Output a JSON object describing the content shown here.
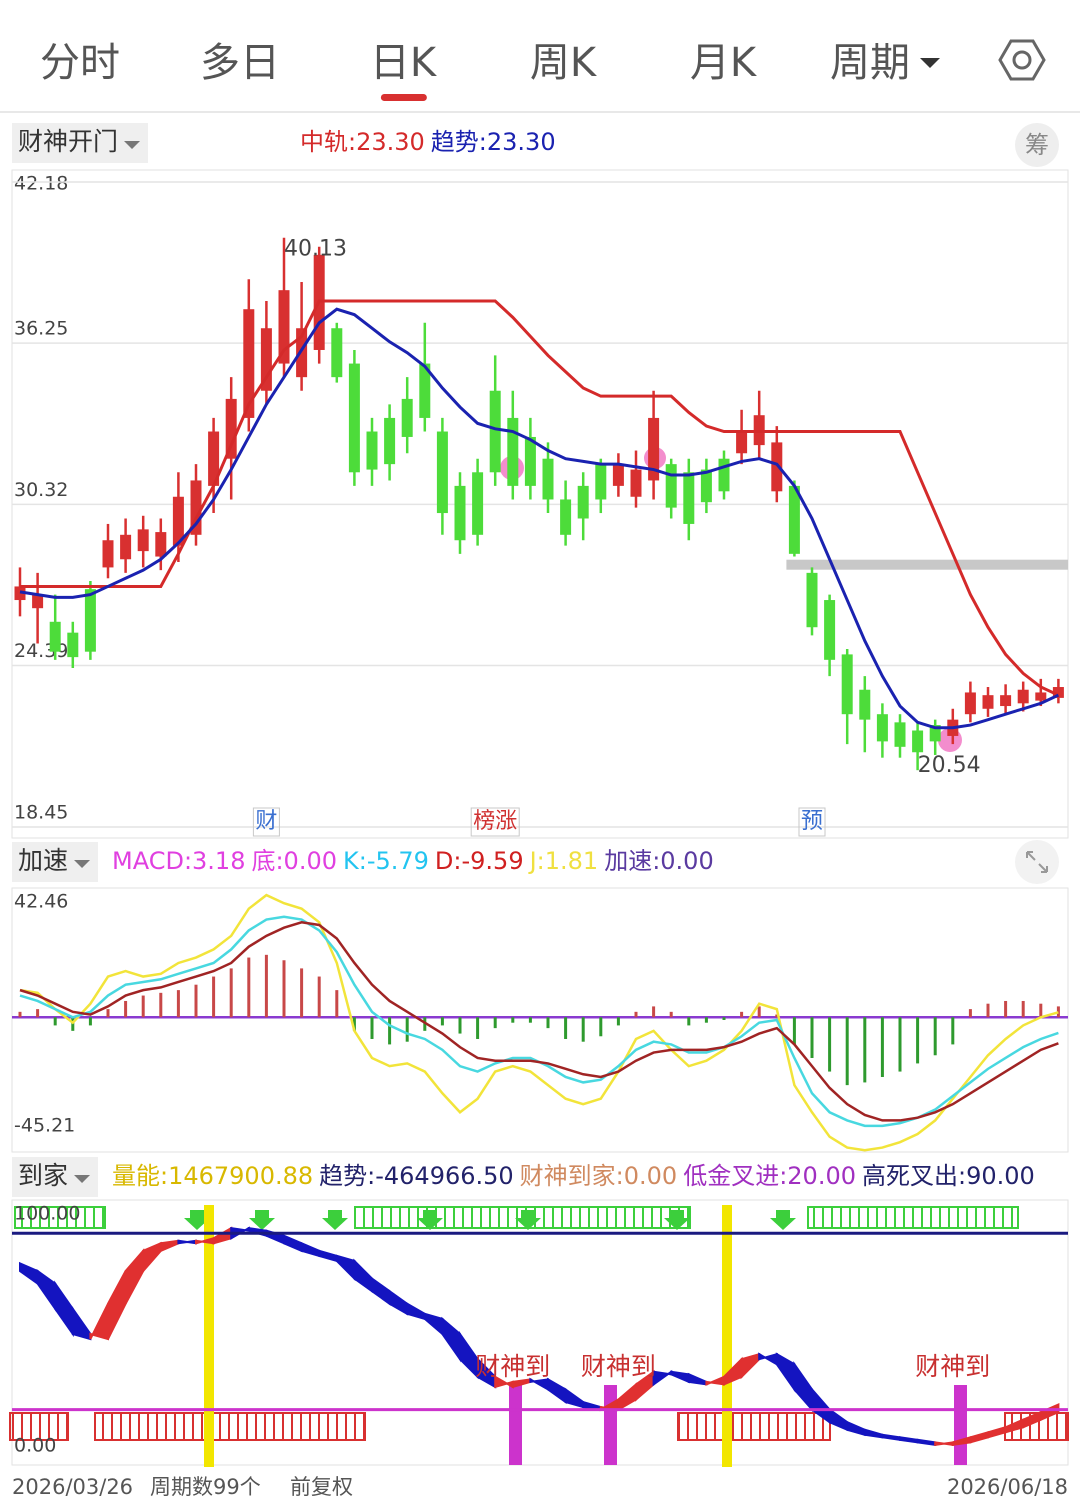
{
  "tabs": [
    "分时",
    "多日",
    "日K",
    "周K",
    "月K",
    "周期"
  ],
  "active_tab": 2,
  "chart_data": [
    {
      "type": "candlestick",
      "indicator": "财神开门",
      "button": "筹",
      "legend": [
        {
          "text": "中轨:23.30",
          "color": "#d42a2a"
        },
        {
          "text": "趋势:23.30",
          "color": "#1a22b0"
        }
      ],
      "ylim": [
        18.45,
        42.18
      ],
      "yticks": [
        42.18,
        36.25,
        30.32,
        24.39,
        18.45
      ],
      "grid": true,
      "up_color": "#d83030",
      "down_color": "#4ddc3a",
      "candles": [
        {
          "o": 26.8,
          "h": 28.0,
          "l": 26.2,
          "c": 27.3
        },
        {
          "o": 26.5,
          "h": 27.8,
          "l": 25.2,
          "c": 27.0
        },
        {
          "o": 26.0,
          "h": 27.0,
          "l": 24.6,
          "c": 24.9
        },
        {
          "o": 25.6,
          "h": 26.0,
          "l": 24.3,
          "c": 24.7
        },
        {
          "o": 27.2,
          "h": 27.5,
          "l": 24.6,
          "c": 24.9
        },
        {
          "o": 28.0,
          "h": 29.6,
          "l": 27.6,
          "c": 29.0
        },
        {
          "o": 28.3,
          "h": 29.8,
          "l": 27.8,
          "c": 29.2
        },
        {
          "o": 28.6,
          "h": 29.9,
          "l": 28.0,
          "c": 29.4
        },
        {
          "o": 28.4,
          "h": 29.8,
          "l": 27.9,
          "c": 29.3
        },
        {
          "o": 28.8,
          "h": 31.5,
          "l": 28.2,
          "c": 30.6
        },
        {
          "o": 29.2,
          "h": 31.8,
          "l": 28.8,
          "c": 31.2
        },
        {
          "o": 31.0,
          "h": 33.5,
          "l": 30.0,
          "c": 33.0
        },
        {
          "o": 32.0,
          "h": 35.0,
          "l": 30.5,
          "c": 34.2
        },
        {
          "o": 33.5,
          "h": 38.6,
          "l": 33.0,
          "c": 37.5
        },
        {
          "o": 34.5,
          "h": 37.8,
          "l": 34.0,
          "c": 36.8
        },
        {
          "o": 35.5,
          "h": 40.13,
          "l": 35.0,
          "c": 38.2
        },
        {
          "o": 35.0,
          "h": 38.5,
          "l": 34.5,
          "c": 36.8
        },
        {
          "o": 36.0,
          "h": 39.8,
          "l": 35.5,
          "c": 39.5
        },
        {
          "o": 36.8,
          "h": 37.0,
          "l": 34.8,
          "c": 35.0
        },
        {
          "o": 35.5,
          "h": 36.0,
          "l": 31.0,
          "c": 31.5
        },
        {
          "o": 33.0,
          "h": 33.5,
          "l": 31.0,
          "c": 31.6
        },
        {
          "o": 33.5,
          "h": 34.0,
          "l": 31.2,
          "c": 31.8
        },
        {
          "o": 34.2,
          "h": 35.0,
          "l": 32.2,
          "c": 32.8
        },
        {
          "o": 35.5,
          "h": 37.0,
          "l": 33.0,
          "c": 33.5
        },
        {
          "o": 33.0,
          "h": 33.5,
          "l": 29.2,
          "c": 30.0
        },
        {
          "o": 31.0,
          "h": 31.5,
          "l": 28.5,
          "c": 29.0
        },
        {
          "o": 31.5,
          "h": 32.0,
          "l": 28.8,
          "c": 29.2
        },
        {
          "o": 34.5,
          "h": 35.8,
          "l": 31.0,
          "c": 31.5
        },
        {
          "o": 33.5,
          "h": 34.5,
          "l": 30.5,
          "c": 31.0
        },
        {
          "o": 32.8,
          "h": 33.5,
          "l": 30.5,
          "c": 31.0
        },
        {
          "o": 32.0,
          "h": 32.6,
          "l": 30.0,
          "c": 30.5
        },
        {
          "o": 30.5,
          "h": 31.2,
          "l": 28.8,
          "c": 29.2
        },
        {
          "o": 31.0,
          "h": 31.5,
          "l": 29.0,
          "c": 29.8
        },
        {
          "o": 31.8,
          "h": 32.0,
          "l": 30.0,
          "c": 30.5
        },
        {
          "o": 31.0,
          "h": 32.2,
          "l": 30.6,
          "c": 31.8
        },
        {
          "o": 30.6,
          "h": 32.3,
          "l": 30.2,
          "c": 31.6
        },
        {
          "o": 31.2,
          "h": 34.5,
          "l": 30.5,
          "c": 33.5
        },
        {
          "o": 31.8,
          "h": 32.0,
          "l": 29.8,
          "c": 30.2
        },
        {
          "o": 31.5,
          "h": 32.0,
          "l": 29.0,
          "c": 29.6
        },
        {
          "o": 31.6,
          "h": 32.0,
          "l": 30.0,
          "c": 30.4
        },
        {
          "o": 32.0,
          "h": 32.3,
          "l": 30.5,
          "c": 30.8
        },
        {
          "o": 32.2,
          "h": 33.8,
          "l": 31.8,
          "c": 33.0
        },
        {
          "o": 32.5,
          "h": 34.5,
          "l": 32.0,
          "c": 33.6
        },
        {
          "o": 30.8,
          "h": 33.2,
          "l": 30.4,
          "c": 32.6
        },
        {
          "o": 31.0,
          "h": 31.2,
          "l": 28.4,
          "c": 28.5
        },
        {
          "o": 27.8,
          "h": 28.0,
          "l": 25.5,
          "c": 25.8
        },
        {
          "o": 26.8,
          "h": 27.0,
          "l": 24.0,
          "c": 24.6
        },
        {
          "o": 24.8,
          "h": 25.0,
          "l": 21.5,
          "c": 22.6
        },
        {
          "o": 23.5,
          "h": 24.0,
          "l": 21.2,
          "c": 22.4
        },
        {
          "o": 22.6,
          "h": 23.0,
          "l": 21.0,
          "c": 21.6
        },
        {
          "o": 22.3,
          "h": 22.6,
          "l": 21.0,
          "c": 21.4
        },
        {
          "o": 22.0,
          "h": 22.3,
          "l": 20.54,
          "c": 21.2
        },
        {
          "o": 22.2,
          "h": 22.4,
          "l": 21.1,
          "c": 21.6
        },
        {
          "o": 21.8,
          "h": 22.8,
          "l": 21.5,
          "c": 22.4
        },
        {
          "o": 22.6,
          "h": 23.8,
          "l": 22.3,
          "c": 23.4
        },
        {
          "o": 22.8,
          "h": 23.6,
          "l": 22.5,
          "c": 23.3
        },
        {
          "o": 22.9,
          "h": 23.7,
          "l": 22.6,
          "c": 23.3
        },
        {
          "o": 23.0,
          "h": 23.8,
          "l": 22.7,
          "c": 23.5
        },
        {
          "o": 23.1,
          "h": 23.9,
          "l": 22.9,
          "c": 23.4
        },
        {
          "o": 23.2,
          "h": 23.9,
          "l": 23.0,
          "c": 23.6
        }
      ],
      "series": [
        {
          "color": "#d42a2a",
          "values": [
            27.3,
            27.3,
            27.3,
            27.3,
            27.3,
            27.3,
            27.3,
            27.3,
            27.3,
            28.5,
            29.8,
            31,
            32.5,
            34,
            35,
            36,
            36.5,
            37.8,
            37.8,
            37.8,
            37.8,
            37.8,
            37.8,
            37.8,
            37.8,
            37.8,
            37.8,
            37.8,
            37.2,
            36.5,
            35.8,
            35.2,
            34.6,
            34.3,
            34.3,
            34.3,
            34.3,
            34.3,
            33.7,
            33.2,
            33,
            33,
            33,
            33,
            33,
            33,
            33,
            33,
            33,
            33,
            33,
            31.5,
            30,
            28.5,
            27,
            25.8,
            24.8,
            24.1,
            23.6,
            23.3
          ]
        },
        {
          "color": "#1a22b0",
          "values": [
            27.1,
            27,
            26.9,
            26.9,
            27,
            27.3,
            27.6,
            27.9,
            28.3,
            28.9,
            29.6,
            30.5,
            31.6,
            32.8,
            34,
            35,
            36,
            37,
            37.5,
            37.3,
            36.8,
            36.3,
            35.9,
            35.4,
            34.6,
            33.9,
            33.3,
            33.1,
            33,
            32.7,
            32.3,
            32,
            31.9,
            31.8,
            31.8,
            31.7,
            31.6,
            31.4,
            31.4,
            31.5,
            31.7,
            31.9,
            32,
            31.8,
            31,
            29.8,
            28.3,
            26.8,
            25.3,
            24,
            22.9,
            22.3,
            22.1,
            22.1,
            22.2,
            22.4,
            22.6,
            22.8,
            23,
            23.3
          ]
        }
      ],
      "level": 28.1,
      "level_from": 44,
      "level_color": "#c8c8c8",
      "annotations": [
        {
          "text": "财",
          "index": 14,
          "color": "#3a6fd0"
        },
        {
          "text": "榜涨",
          "index": 27,
          "color": "#d03030"
        },
        {
          "text": "预",
          "index": 45,
          "color": "#3a6fd0"
        }
      ]
    },
    {
      "type": "macd",
      "indicator": "加速",
      "legend": [
        {
          "text": "MACD:3.18",
          "color": "#e040e0"
        },
        {
          "text": "底:0.00",
          "color": "#e040e0"
        },
        {
          "text": "K:-5.79",
          "color": "#22c4f0"
        },
        {
          "text": "D:-9.59",
          "color": "#d02020"
        },
        {
          "text": "J:1.81",
          "color": "#f0e040"
        },
        {
          "text": "加速:0.00",
          "color": "#5a3aa0"
        }
      ],
      "ylim": [
        -45.21,
        42.46
      ],
      "yticks": [
        42.46,
        -45.21
      ],
      "grid": false,
      "zero_color": "#8a3ad0",
      "bars": {
        "up_color": "#c84848",
        "down_color": "#2e9a2e",
        "values": [
          2,
          3,
          -3,
          -5,
          -3,
          3,
          6,
          8,
          9,
          10,
          12,
          15,
          18,
          22,
          23,
          21,
          18,
          15,
          10,
          -5,
          -8,
          -10,
          -9,
          -5,
          -3,
          -6,
          -8,
          -4,
          -2,
          -2,
          -4,
          -8,
          -9,
          -7,
          -3,
          2,
          4,
          2,
          -3,
          -2,
          -1,
          2,
          4,
          1,
          -10,
          -15,
          -20,
          -25,
          -24,
          -22,
          -20,
          -17,
          -14,
          -10,
          3,
          5,
          6,
          6,
          5,
          4
        ]
      },
      "series": [
        {
          "color": "#f2e43a",
          "values": [
            10,
            9,
            3,
            -2,
            5,
            15,
            17,
            15,
            16,
            20,
            22,
            25,
            30,
            40,
            45,
            42,
            40,
            35,
            20,
            -5,
            -15,
            -18,
            -17,
            -20,
            -28,
            -35,
            -30,
            -20,
            -18,
            -20,
            -25,
            -30,
            -32,
            -30,
            -20,
            -8,
            -5,
            -12,
            -18,
            -16,
            -12,
            -5,
            5,
            3,
            -25,
            -35,
            -44,
            -48,
            -49,
            -48,
            -46,
            -43,
            -38,
            -30,
            -22,
            -14,
            -8,
            -3,
            0,
            1.81
          ]
        },
        {
          "color": "#48d8e0",
          "values": [
            8,
            6,
            3,
            0,
            2,
            8,
            12,
            13,
            14,
            16,
            18,
            20,
            25,
            32,
            36,
            37,
            36,
            32,
            24,
            12,
            2,
            -3,
            -6,
            -8,
            -12,
            -18,
            -20,
            -17,
            -15,
            -15,
            -18,
            -22,
            -24,
            -23,
            -18,
            -12,
            -9,
            -10,
            -13,
            -13,
            -11,
            -7,
            -2,
            -1,
            -15,
            -28,
            -35,
            -38,
            -40,
            -40,
            -39,
            -37,
            -34,
            -29,
            -24,
            -19,
            -15,
            -11,
            -8,
            -5.79
          ]
        },
        {
          "color": "#a02424",
          "values": [
            10,
            8,
            5,
            2,
            1,
            4,
            8,
            10,
            11,
            13,
            15,
            17,
            20,
            26,
            30,
            33,
            35,
            34,
            29,
            20,
            12,
            6,
            2,
            -2,
            -6,
            -11,
            -15,
            -16,
            -16,
            -16,
            -17,
            -19,
            -21,
            -22,
            -20,
            -16,
            -13,
            -12,
            -12,
            -12,
            -11,
            -9,
            -6,
            -4,
            -10,
            -18,
            -26,
            -32,
            -36,
            -38,
            -38,
            -37,
            -35,
            -32,
            -28,
            -24,
            -20,
            -16,
            -12,
            -9.59
          ]
        }
      ]
    },
    {
      "type": "band",
      "indicator": "到家",
      "legend": [
        {
          "text": "量能:1467900.88",
          "color": "#d8b800"
        },
        {
          "text": "趋势:-464966.50",
          "color": "#22226a"
        },
        {
          "text": "财神到家:0.00",
          "color": "#d08a60"
        },
        {
          "text": "低金叉进:20.00",
          "color": "#a030c0"
        },
        {
          "text": "高死叉出:90.00",
          "color": "#22226a"
        }
      ],
      "ylim": [
        0,
        100
      ],
      "yticks": [
        {
          "value": 100,
          "label": "100.00"
        },
        {
          "value": 0,
          "label": "0.00"
        }
      ],
      "grid": false,
      "fill_up": "#e03030",
      "fill_down": "#1414c0",
      "series": [
        {
          "color": "#1414c0",
          "values": [
            75,
            70,
            60,
            50,
            48,
            62,
            75,
            83,
            86,
            87,
            86,
            88,
            92,
            91,
            89,
            86,
            83,
            81,
            79,
            72,
            67,
            62,
            58,
            56,
            50,
            40,
            33,
            29,
            31,
            32,
            28,
            23,
            21,
            20,
            24,
            30,
            35,
            34,
            31,
            30,
            33,
            40,
            42,
            38,
            28,
            20,
            15,
            12,
            10,
            9,
            8,
            7,
            6,
            7,
            9,
            11,
            13,
            16,
            19,
            22
          ]
        },
        {
          "color": "#1414c0",
          "values": [
            78,
            75,
            70,
            60,
            50,
            48,
            62,
            75,
            83,
            86,
            87,
            86,
            88,
            92,
            91,
            89,
            86,
            83,
            81,
            79,
            72,
            67,
            62,
            58,
            56,
            50,
            40,
            33,
            29,
            31,
            32,
            28,
            23,
            21,
            20,
            24,
            30,
            35,
            34,
            31,
            30,
            33,
            40,
            42,
            38,
            28,
            20,
            15,
            12,
            10,
            9,
            8,
            7,
            6,
            7,
            9,
            11,
            13,
            16,
            19
          ]
        }
      ],
      "levels": [
        {
          "value": 90,
          "color": "#1a1a80"
        },
        {
          "value": 20,
          "color": "#cc33cc"
        }
      ],
      "annotations": [
        {
          "text": "财神到",
          "index": 28,
          "color": "#c83030"
        },
        {
          "text": "财神到",
          "index": 34,
          "color": "#c83030"
        },
        {
          "text": "财神到",
          "index": 53,
          "color": "#c83030"
        }
      ]
    }
  ],
  "footer": {
    "start": "2026/03/26",
    "periods": "周期数99个",
    "adjust": "前复权",
    "end": "2026/06/18"
  }
}
